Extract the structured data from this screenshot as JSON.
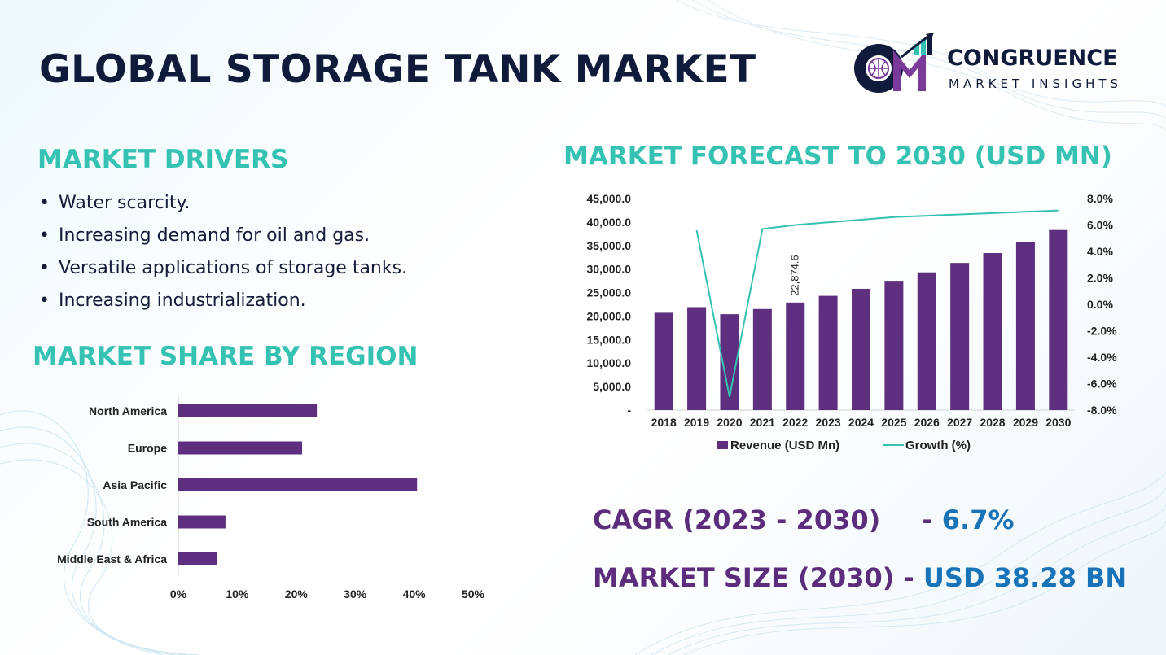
{
  "header": {
    "title": "GLOBAL STORAGE TANK MARKET"
  },
  "logo": {
    "name": "CONGRUENCE",
    "subtitle": "MARKET INSIGHTS",
    "icon": "cm-logo-icon"
  },
  "drivers": {
    "title": "MARKET DRIVERS",
    "items": [
      "Water scarcity.",
      "Increasing demand for oil and gas.",
      "Versatile applications of storage tanks.",
      "Increasing industrialization."
    ]
  },
  "share": {
    "title": "MARKET SHARE BY REGION"
  },
  "forecast": {
    "title": "MARKET FORECAST TO 2030 (USD MN)"
  },
  "stats": {
    "cagr_label": "CAGR (2023 - 2030)",
    "cagr_dash": "- ",
    "cagr_value": "6.7%",
    "size_label": "MARKET SIZE (2030) - ",
    "size_value": "USD 38.28 BN"
  },
  "colors": {
    "teal": "#35c2b3",
    "purple": "#5e2f7e",
    "navy": "#101a3b",
    "blue": "#1873b8"
  },
  "chart_data": [
    {
      "type": "bar",
      "orientation": "horizontal",
      "categories": [
        "North America",
        "Europe",
        "Asia Pacific",
        "South America",
        "Middle East & Africa"
      ],
      "values": [
        23.5,
        21,
        40.5,
        8,
        6.5
      ],
      "xlim": [
        0,
        50
      ],
      "xticks": [
        "0%",
        "10%",
        "20%",
        "30%",
        "40%",
        "50%"
      ],
      "grid": false
    },
    {
      "type": "bar",
      "categories": [
        "2018",
        "2019",
        "2020",
        "2021",
        "2022",
        "2023",
        "2024",
        "2025",
        "2026",
        "2027",
        "2028",
        "2029",
        "2030"
      ],
      "series": [
        {
          "name": "Revenue (USD Mn)",
          "type": "bar",
          "axis": "left",
          "values": [
            20700,
            21900,
            20400,
            21500,
            22874.6,
            24300,
            25800,
            27500,
            29300,
            31300,
            33400,
            35800,
            38300
          ]
        },
        {
          "name": "Growth (%)",
          "type": "line",
          "axis": "right",
          "values": [
            null,
            5.6,
            -7.0,
            5.7,
            6.0,
            6.2,
            6.4,
            6.6,
            6.7,
            6.8,
            6.9,
            7.0,
            7.1
          ]
        }
      ],
      "data_labels": [
        {
          "index": 4,
          "text": "22,874.6"
        }
      ],
      "ylim_left": [
        0,
        45000
      ],
      "yticks_left": [
        "-",
        "5,000.0",
        "10,000.0",
        "15,000.0",
        "20,000.0",
        "25,000.0",
        "30,000.0",
        "35,000.0",
        "40,000.0",
        "45,000.0"
      ],
      "ylim_right": [
        -8,
        8
      ],
      "yticks_right": [
        "-8.0%",
        "-6.0%",
        "-4.0%",
        "-2.0%",
        "0.0%",
        "2.0%",
        "4.0%",
        "6.0%",
        "8.0%"
      ],
      "legend": "bottom",
      "grid": false
    }
  ]
}
